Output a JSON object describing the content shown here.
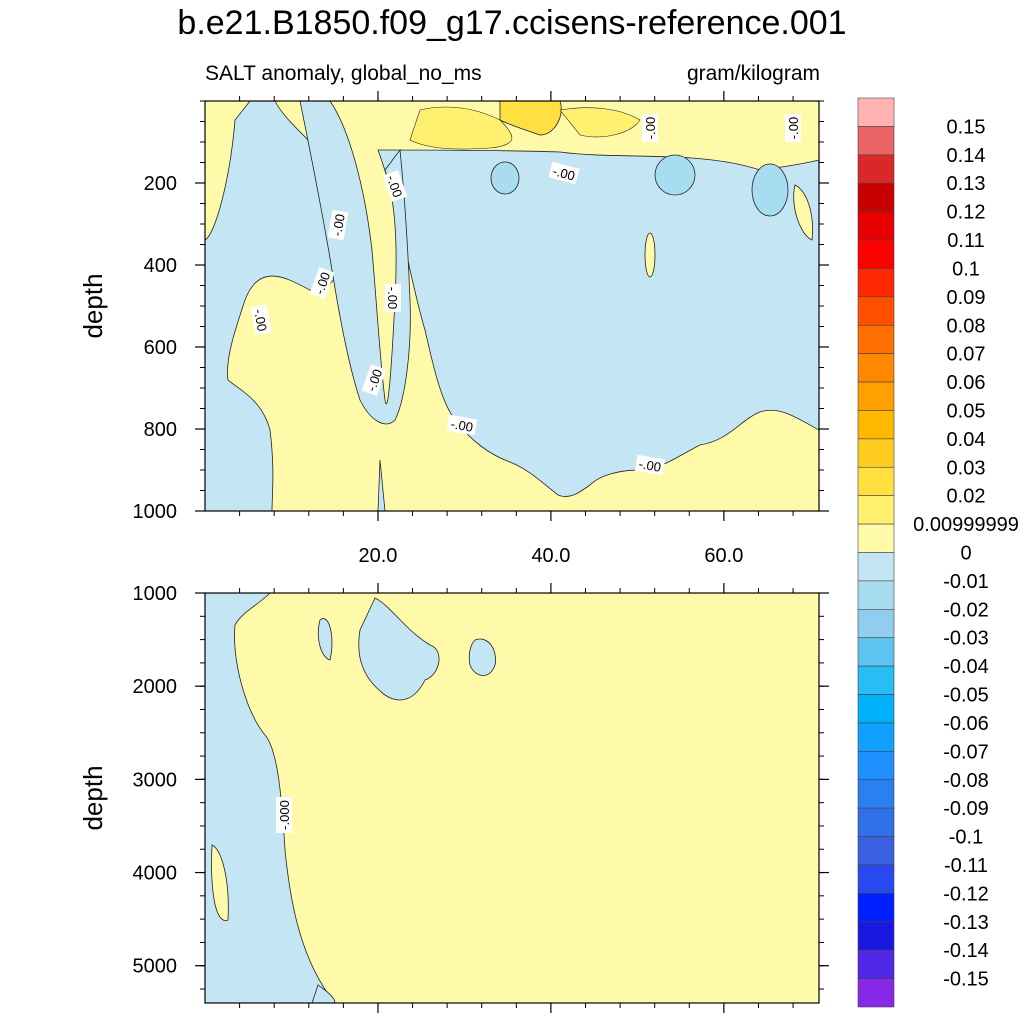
{
  "chart_data": {
    "type": "heatmap",
    "title": "b.e21.B1850.f09_g17.ccisens-reference.001",
    "left_subtitle": "SALT anomaly, global_no_ms",
    "right_subtitle": "gram/kilogram",
    "ylabel": "depth",
    "xlim": [
      0,
      71
    ],
    "x_ticks": [
      20,
      40,
      60
    ],
    "x_tick_labels": [
      "20.0",
      "40.0",
      "60.0"
    ],
    "panels": [
      {
        "name": "upper",
        "ylim": [
          1000,
          0
        ],
        "y_ticks": [
          200,
          400,
          600,
          800,
          1000
        ],
        "y_tick_labels": [
          "200",
          "400",
          "600",
          "800",
          "1000"
        ],
        "contour_label": "-.00"
      },
      {
        "name": "lower",
        "ylim": [
          5400,
          1000
        ],
        "y_ticks": [
          1000,
          2000,
          3000,
          4000,
          5000
        ],
        "y_tick_labels": [
          "1000",
          "2000",
          "3000",
          "4000",
          "5000"
        ],
        "contour_label": "-.000"
      }
    ],
    "colorbar": {
      "labels": [
        "0.15",
        "0.14",
        "0.13",
        "0.12",
        "0.11",
        "0.1",
        "0.09",
        "0.08",
        "0.07",
        "0.06",
        "0.05",
        "0.04",
        "0.03",
        "0.02",
        "0.00999999",
        "0",
        "-0.01",
        "-0.02",
        "-0.03",
        "-0.04",
        "-0.05",
        "-0.06",
        "-0.07",
        "-0.08",
        "-0.09",
        "-0.1",
        "-0.11",
        "-0.12",
        "-0.13",
        "-0.14",
        "-0.15"
      ],
      "colors": [
        "#ffb3b3",
        "#e86464",
        "#d82828",
        "#c80000",
        "#e80000",
        "#ff0000",
        "#ff2800",
        "#ff5000",
        "#ff7000",
        "#ff8800",
        "#ffa000",
        "#ffb800",
        "#ffcc20",
        "#ffe040",
        "#fff070",
        "#fffaaa",
        "#c4e6f4",
        "#a8dcf0",
        "#90cdee",
        "#60c4f0",
        "#28bef4",
        "#00b0f8",
        "#10a0ff",
        "#1e90ff",
        "#2a80f0",
        "#3070e8",
        "#3860e0",
        "#2848f0",
        "#0020ff",
        "#1818e0",
        "#5028e8",
        "#8828e8"
      ]
    }
  }
}
